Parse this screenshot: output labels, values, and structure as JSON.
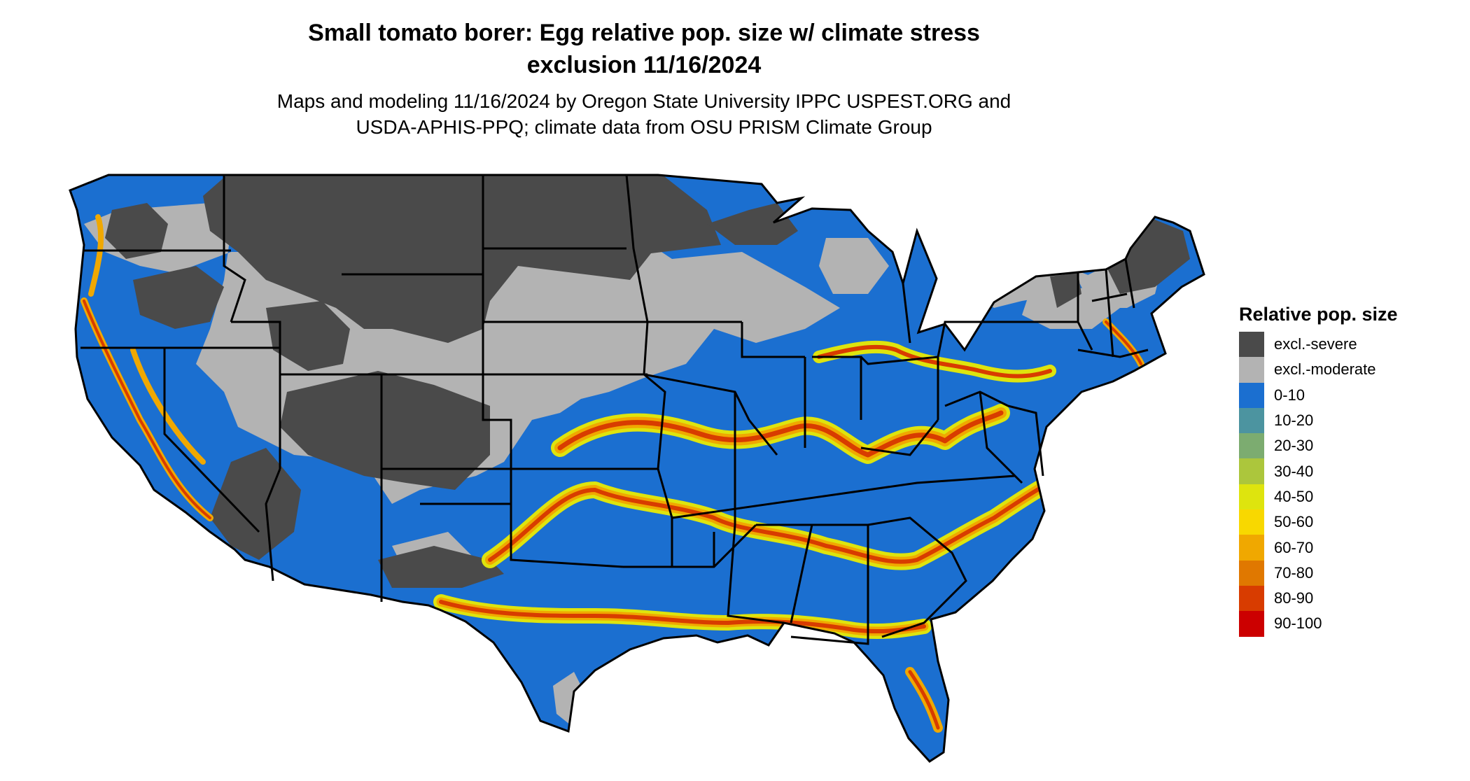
{
  "title": {
    "line1": "Small tomato borer: Egg relative pop. size w/ climate stress",
    "line2": "exclusion 11/16/2024"
  },
  "subtitle": {
    "line1": "Maps and modeling 11/16/2024 by Oregon State University IPPC USPEST.ORG and",
    "line2": "USDA-APHIS-PPQ; climate data from OSU PRISM Climate Group"
  },
  "legend": {
    "title": "Relative pop. size",
    "items": [
      {
        "label": "excl.-severe",
        "color": "#4a4a4a"
      },
      {
        "label": "excl.-moderate",
        "color": "#b3b3b3"
      },
      {
        "label": "0-10",
        "color": "#1b6fd0"
      },
      {
        "label": "10-20",
        "color": "#4c94a0"
      },
      {
        "label": "20-30",
        "color": "#7cac70"
      },
      {
        "label": "30-40",
        "color": "#acc63c"
      },
      {
        "label": "40-50",
        "color": "#dee40e"
      },
      {
        "label": "50-60",
        "color": "#f8d800"
      },
      {
        "label": "60-70",
        "color": "#f0a800"
      },
      {
        "label": "70-80",
        "color": "#e07800"
      },
      {
        "label": "80-90",
        "color": "#d83c00"
      },
      {
        "label": "90-100",
        "color": "#cc0000"
      }
    ]
  },
  "map": {
    "region": "Conterminous United States",
    "colors": {
      "severe": "#4a4a4a",
      "moderate": "#b3b3b3",
      "low": "#1b6fd0",
      "yellow": "#dee40e",
      "orange": "#f0a800",
      "red": "#d83c00",
      "border": "#000000"
    }
  }
}
